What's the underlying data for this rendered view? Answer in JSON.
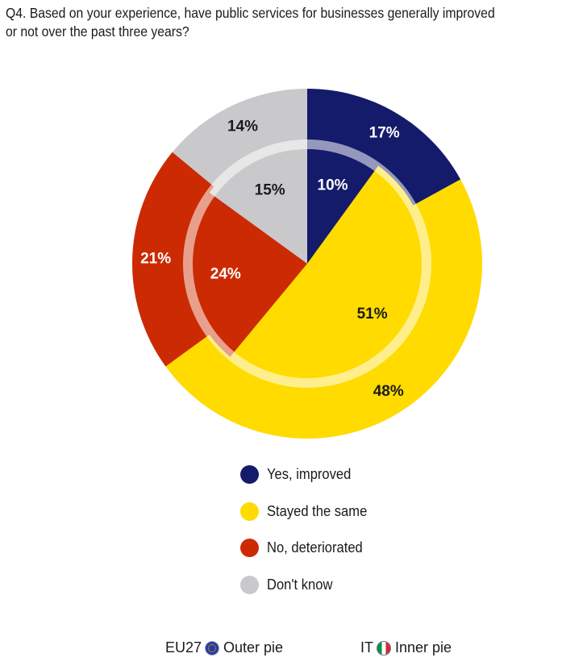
{
  "question": "Q4. Based on your experience, have public services for businesses generally improved or not over the past three years?",
  "colors": {
    "yes_improved": "#141b6b",
    "stayed_same": "#ffdb00",
    "no_deteriorated": "#cc2a02",
    "dont_know": "#c9c9cc"
  },
  "legend": {
    "items": [
      {
        "label": "Yes, improved",
        "color": "#141b6b"
      },
      {
        "label": "Stayed the same",
        "color": "#ffdb00"
      },
      {
        "label": "No, deteriorated",
        "color": "#cc2a02"
      },
      {
        "label": "Don't know",
        "color": "#c9c9cc"
      }
    ]
  },
  "footer": {
    "eu_label": "EU27",
    "eu_icon": "eu-flag-icon",
    "eu_desc": "Outer pie",
    "it_label": "IT",
    "it_icon": "italy-flag-icon",
    "it_desc": "Inner pie"
  },
  "chart_data": {
    "type": "pie",
    "categories": [
      "Yes, improved",
      "Stayed the same",
      "No, deteriorated",
      "Don't know"
    ],
    "series": [
      {
        "name": "EU27",
        "ring": "outer",
        "values": [
          17,
          48,
          21,
          14
        ],
        "labels": [
          "17%",
          "48%",
          "21%",
          "14%"
        ]
      },
      {
        "name": "IT",
        "ring": "inner",
        "values": [
          10,
          51,
          24,
          15
        ],
        "labels": [
          "10%",
          "51%",
          "24%",
          "15%"
        ]
      }
    ],
    "start_angle": "12 o'clock, clockwise"
  }
}
